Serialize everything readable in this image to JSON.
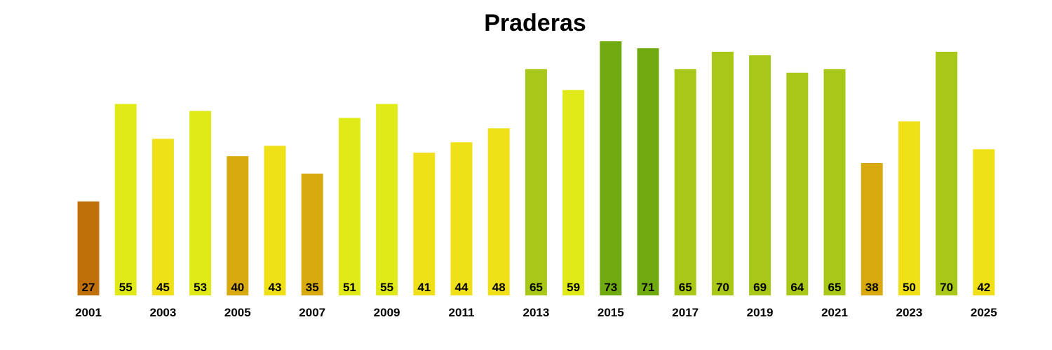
{
  "chart_data": {
    "type": "bar",
    "title": "Praderas",
    "xlabel": "",
    "ylabel": "",
    "ylim": [
      0,
      73
    ],
    "grid": false,
    "legend": "none",
    "categories": [
      "2001",
      "2002",
      "2003",
      "2004",
      "2005",
      "2006",
      "2007",
      "2008",
      "2009",
      "2010",
      "2011",
      "2012",
      "2013",
      "2014",
      "2015",
      "2016",
      "2017",
      "2018",
      "2019",
      "2020",
      "2021",
      "2022",
      "2023",
      "2024",
      "2025"
    ],
    "tick_labels": [
      "2001",
      "2003",
      "2005",
      "2007",
      "2009",
      "2011",
      "2013",
      "2015",
      "2017",
      "2019",
      "2021",
      "2023",
      "2025"
    ],
    "values": [
      27,
      55,
      45,
      53,
      40,
      43,
      35,
      51,
      55,
      41,
      44,
      48,
      65,
      59,
      73,
      71,
      65,
      70,
      69,
      64,
      65,
      38,
      50,
      70,
      42
    ],
    "colors": [
      "#c07008",
      "#e0ea18",
      "#f0e018",
      "#e0ea18",
      "#d8aa10",
      "#f0e018",
      "#d8aa10",
      "#e0ea18",
      "#e0ea18",
      "#f0e018",
      "#f0e018",
      "#f0e018",
      "#a8c818",
      "#e0ea18",
      "#6eaa10",
      "#6eaa10",
      "#a8c818",
      "#a8c818",
      "#a8c818",
      "#a8c818",
      "#a8c818",
      "#d8aa10",
      "#f0e018",
      "#a8c818",
      "#f0e018"
    ]
  }
}
